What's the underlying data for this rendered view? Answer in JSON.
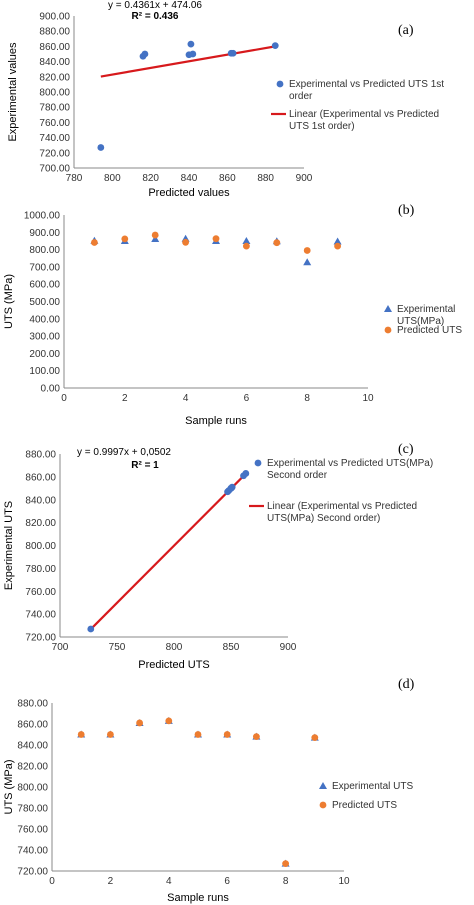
{
  "colors": {
    "blue": "#4472C4",
    "orange": "#ED7D31",
    "red": "#D7191C",
    "axis": "#888888"
  },
  "chart_data": [
    {
      "panel": "(a)",
      "type": "scatter",
      "xlabel": "Predicted values",
      "ylabel": "Experimental values",
      "xlim": [
        780,
        900
      ],
      "ylim": [
        700,
        900
      ],
      "x_ticks": [
        "780",
        "800",
        "820",
        "840",
        "860",
        "880",
        "900"
      ],
      "y_ticks": [
        "700.00",
        "720.00",
        "740.00",
        "760.00",
        "780.00",
        "800.00",
        "820.00",
        "840.00",
        "860.00",
        "880.00",
        "900.00"
      ],
      "equation": "y = 0.4361x + 474.06",
      "r2": "R² = 0.436",
      "legend": [
        "Experimental vs Predicted UTS 1st order",
        "Linear (Experimental vs Predicted UTS 1st order)"
      ],
      "points": [
        [
          794,
          727
        ],
        [
          816,
          847
        ],
        [
          817,
          850
        ],
        [
          840,
          849
        ],
        [
          841,
          863
        ],
        [
          842,
          850
        ],
        [
          862,
          851
        ],
        [
          863,
          851
        ],
        [
          885,
          861
        ]
      ],
      "trendline": [
        [
          794,
          820.32
        ],
        [
          885,
          860.01
        ]
      ]
    },
    {
      "panel": "(b)",
      "type": "scatter",
      "xlabel": "Sample  runs",
      "ylabel": "UTS (MPa)",
      "xlim": [
        0,
        10
      ],
      "ylim": [
        0,
        1000
      ],
      "x_ticks": [
        "0",
        "2",
        "4",
        "6",
        "8",
        "10"
      ],
      "y_ticks": [
        "0.00",
        "100.00",
        "200.00",
        "300.00",
        "400.00",
        "500.00",
        "600.00",
        "700.00",
        "800.00",
        "900.00",
        "1000.00"
      ],
      "legend": [
        "Experimental UTS(MPa)",
        "Predicted UTS"
      ],
      "series": [
        {
          "name": "Experimental UTS(MPa)",
          "x": [
            1,
            2,
            3,
            4,
            5,
            6,
            7,
            8,
            9
          ],
          "values": [
            851,
            850,
            861,
            863,
            850,
            850,
            848,
            727,
            847
          ]
        },
        {
          "name": "Predicted UTS",
          "x": [
            1,
            2,
            3,
            4,
            5,
            6,
            7,
            8,
            9
          ],
          "values": [
            841,
            862,
            884,
            842,
            863,
            820,
            840,
            795,
            820
          ]
        }
      ]
    },
    {
      "panel": "(c)",
      "type": "scatter",
      "xlabel": "Predicted UTS",
      "ylabel": "Experimental UTS",
      "xlim": [
        700,
        900
      ],
      "ylim": [
        720,
        880
      ],
      "x_ticks": [
        "700",
        "750",
        "800",
        "850",
        "900"
      ],
      "y_ticks": [
        "720.00",
        "740.00",
        "760.00",
        "780.00",
        "800.00",
        "820.00",
        "840.00",
        "860.00",
        "880.00"
      ],
      "equation": "y = 0.9997x + 0,0502",
      "r2": "R² = 1",
      "legend": [
        "Experimental vs Predicted UTS(MPa) Second order",
        "Linear (Experimental vs Predicted UTS(MPa) Second order)"
      ],
      "points": [
        [
          727,
          727
        ],
        [
          847,
          847
        ],
        [
          848,
          848
        ],
        [
          850,
          850
        ],
        [
          850,
          850
        ],
        [
          851,
          851
        ],
        [
          861,
          861
        ],
        [
          863,
          863
        ]
      ],
      "trendline": [
        [
          727,
          726.83
        ],
        [
          863,
          862.79
        ]
      ]
    },
    {
      "panel": "(d)",
      "type": "scatter",
      "xlabel": "Sample runs",
      "ylabel": "UTS (MPa)",
      "xlim": [
        0,
        10
      ],
      "ylim": [
        720,
        880
      ],
      "x_ticks": [
        "0",
        "2",
        "4",
        "6",
        "8",
        "10"
      ],
      "y_ticks": [
        "720.00",
        "740.00",
        "760.00",
        "780.00",
        "800.00",
        "820.00",
        "840.00",
        "860.00",
        "880.00"
      ],
      "legend": [
        "Experimental UTS",
        "Predicted UTS"
      ],
      "series": [
        {
          "name": "Experimental UTS",
          "x": [
            1,
            2,
            3,
            4,
            5,
            6,
            7,
            8,
            9
          ],
          "values": [
            850,
            850,
            861,
            863,
            850,
            850,
            848,
            727,
            847
          ]
        },
        {
          "name": "Predicted UTS",
          "x": [
            1,
            2,
            3,
            4,
            5,
            6,
            7,
            8,
            9
          ],
          "values": [
            850,
            850,
            861,
            863,
            850,
            850,
            848,
            727,
            847
          ]
        }
      ]
    }
  ]
}
